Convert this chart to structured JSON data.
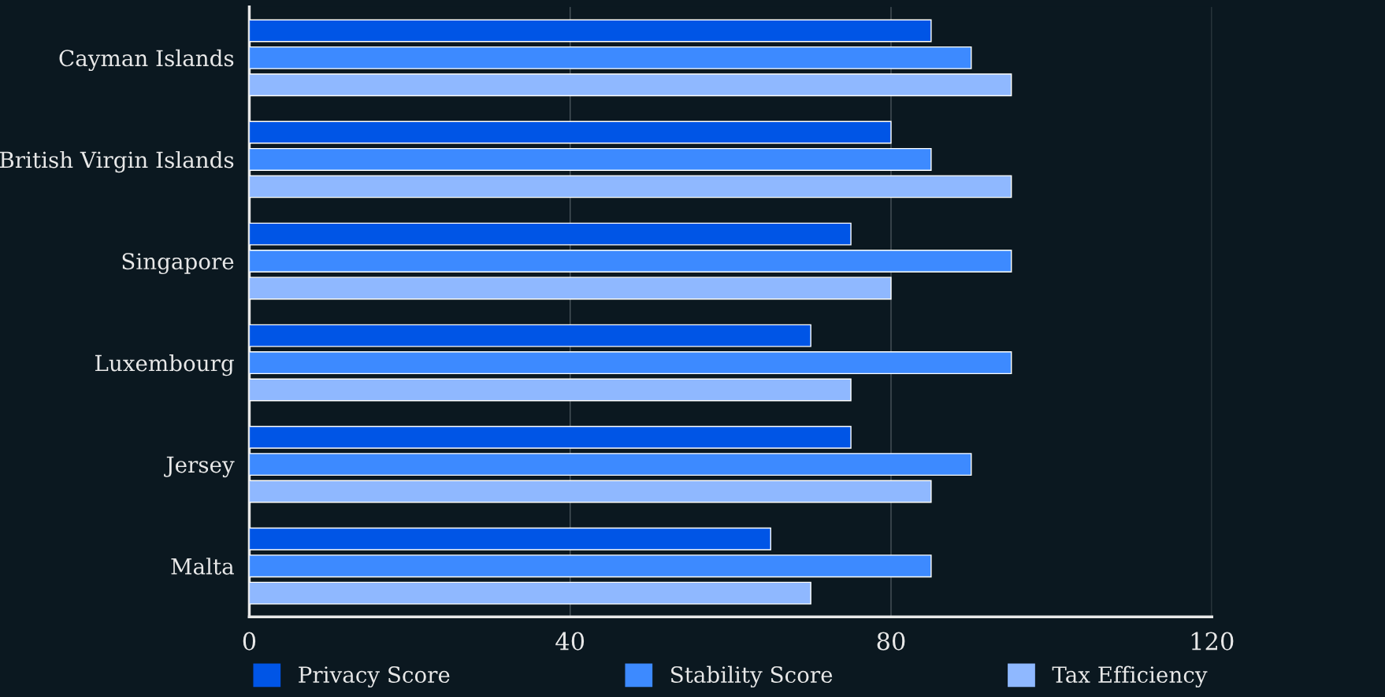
{
  "chart_data": {
    "type": "bar",
    "orientation": "horizontal",
    "categories": [
      "Cayman Islands",
      "British Virgin Islands",
      "Singapore",
      "Luxembourg",
      "Jersey",
      "Malta"
    ],
    "series": [
      {
        "name": "Privacy Score",
        "color": "#0055e6",
        "values": [
          85,
          80,
          75,
          70,
          75,
          65
        ]
      },
      {
        "name": "Stability Score",
        "color": "#3d8aff",
        "values": [
          90,
          85,
          95,
          95,
          90,
          85
        ]
      },
      {
        "name": "Tax Efficiency",
        "color": "#8fb8ff",
        "values": [
          95,
          95,
          80,
          75,
          85,
          70
        ]
      }
    ],
    "xlim": [
      0,
      120
    ],
    "xticks": [
      0,
      40,
      80,
      120
    ],
    "grid": "x",
    "legend": "bottom"
  }
}
